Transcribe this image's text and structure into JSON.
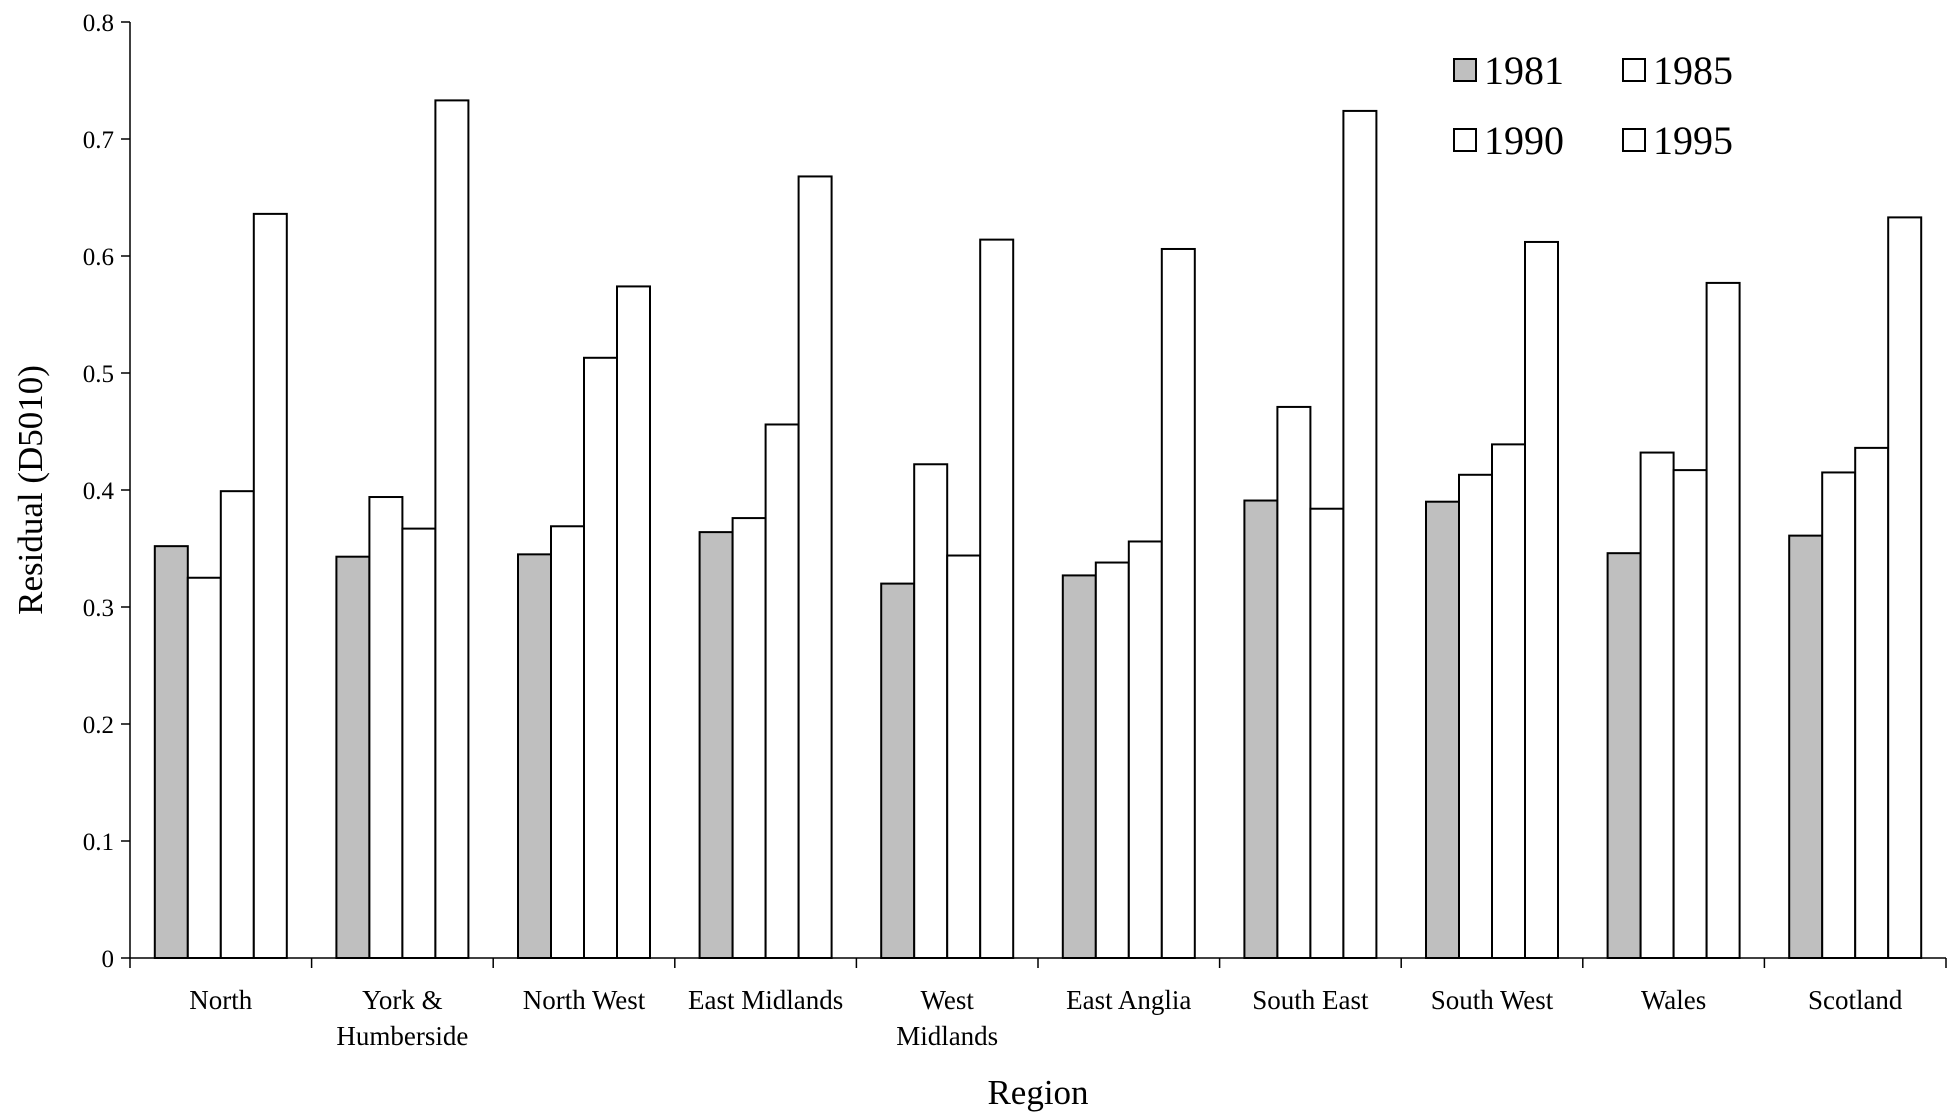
{
  "chart_data": {
    "type": "bar",
    "title": "",
    "xlabel": "Region",
    "ylabel": "Residual (D5010)",
    "ylim": [
      0,
      0.8
    ],
    "yticks": [
      "0",
      "0.1",
      "0.2",
      "0.3",
      "0.4",
      "0.5",
      "0.6",
      "0.7",
      "0.8"
    ],
    "grid": false,
    "legend_position": "top-right",
    "categories": [
      [
        "North"
      ],
      [
        "York &",
        "Humberside"
      ],
      [
        "North West"
      ],
      [
        "East Midlands"
      ],
      [
        "West",
        "Midlands"
      ],
      [
        "East Anglia"
      ],
      [
        "South East"
      ],
      [
        "South West"
      ],
      [
        "Wales"
      ],
      [
        "Scotland"
      ]
    ],
    "series": [
      {
        "name": "1981",
        "color": "#bfbfbf",
        "values": [
          0.352,
          0.343,
          0.345,
          0.364,
          0.32,
          0.327,
          0.391,
          0.39,
          0.346,
          0.361
        ]
      },
      {
        "name": "1985",
        "color": "#ffffff",
        "values": [
          0.325,
          0.394,
          0.369,
          0.376,
          0.422,
          0.338,
          0.471,
          0.413,
          0.432,
          0.415
        ]
      },
      {
        "name": "1990",
        "color": "#ffffff",
        "values": [
          0.399,
          0.367,
          0.513,
          0.456,
          0.344,
          0.356,
          0.384,
          0.439,
          0.417,
          0.436
        ]
      },
      {
        "name": "1995",
        "color": "#ffffff",
        "values": [
          0.636,
          0.733,
          0.574,
          0.668,
          0.614,
          0.606,
          0.724,
          0.612,
          0.577,
          0.633
        ]
      }
    ]
  }
}
